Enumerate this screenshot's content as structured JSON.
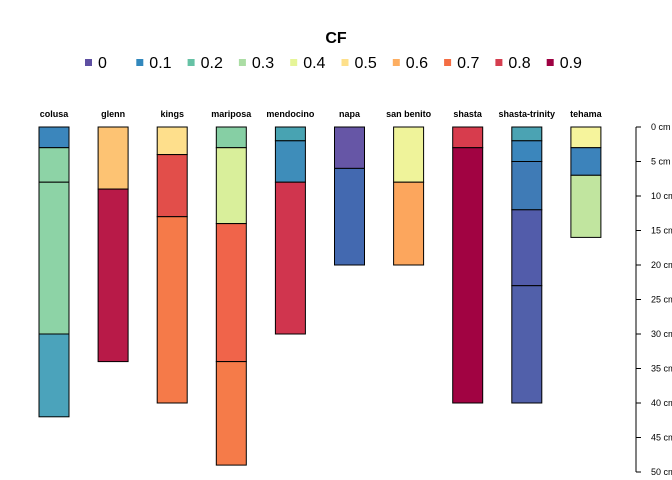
{
  "chart_data": {
    "type": "bar",
    "title": "CF",
    "legend": {
      "placement": "top",
      "entries": [
        {
          "label": "0",
          "color": "#5e4fa2"
        },
        {
          "label": "0.1",
          "color": "#3288bd"
        },
        {
          "label": "0.2",
          "color": "#66c2a5"
        },
        {
          "label": "0.3",
          "color": "#abdda4"
        },
        {
          "label": "0.4",
          "color": "#e6f598"
        },
        {
          "label": "0.5",
          "color": "#fee08b"
        },
        {
          "label": "0.6",
          "color": "#fdae61"
        },
        {
          "label": "0.7",
          "color": "#f46d43"
        },
        {
          "label": "0.8",
          "color": "#d53e4f"
        },
        {
          "label": "0.9",
          "color": "#9e0142"
        }
      ]
    },
    "depth_axis": {
      "range": [
        0,
        50
      ],
      "ticks": [
        0,
        5,
        10,
        15,
        20,
        25,
        30,
        35,
        40,
        45,
        50
      ],
      "tick_labels": [
        "0 cm",
        "5 cm",
        "10 cm",
        "15 cm",
        "20 cm",
        "25 cm",
        "30 cm",
        "35 cm",
        "40 cm",
        "45 cm",
        "50 cm"
      ]
    },
    "profiles": [
      {
        "name": "colusa",
        "horizons": [
          {
            "top": 0,
            "bottom": 3,
            "color": "#3b86bc"
          },
          {
            "top": 3,
            "bottom": 8,
            "color": "#8dd3a6"
          },
          {
            "top": 8,
            "bottom": 30,
            "color": "#8dd3a6"
          },
          {
            "top": 30,
            "bottom": 42,
            "color": "#4ba3bb"
          }
        ]
      },
      {
        "name": "glenn",
        "horizons": [
          {
            "top": 0,
            "bottom": 9,
            "color": "#fdc373"
          },
          {
            "top": 9,
            "bottom": 34,
            "color": "#b81a48"
          }
        ]
      },
      {
        "name": "kings",
        "horizons": [
          {
            "top": 0,
            "bottom": 4,
            "color": "#fedf8c"
          },
          {
            "top": 4,
            "bottom": 13,
            "color": "#e24e4a"
          },
          {
            "top": 13,
            "bottom": 40,
            "color": "#f57a49"
          }
        ]
      },
      {
        "name": "mariposa",
        "horizons": [
          {
            "top": 0,
            "bottom": 3,
            "color": "#86cfa4"
          },
          {
            "top": 3,
            "bottom": 14,
            "color": "#d9ef9b"
          },
          {
            "top": 14,
            "bottom": 34,
            "color": "#f0644a"
          },
          {
            "top": 34,
            "bottom": 49,
            "color": "#f57b49"
          }
        ]
      },
      {
        "name": "mendocino",
        "horizons": [
          {
            "top": 0,
            "bottom": 2,
            "color": "#48a3b2"
          },
          {
            "top": 2,
            "bottom": 8,
            "color": "#3e8dba"
          },
          {
            "top": 8,
            "bottom": 30,
            "color": "#d0354e"
          }
        ]
      },
      {
        "name": "napa",
        "horizons": [
          {
            "top": 0,
            "bottom": 6,
            "color": "#6656a6"
          },
          {
            "top": 6,
            "bottom": 20,
            "color": "#4369b0"
          }
        ]
      },
      {
        "name": "san benito",
        "horizons": [
          {
            "top": 0,
            "bottom": 8,
            "color": "#eff39a"
          },
          {
            "top": 8,
            "bottom": 20,
            "color": "#fca65d"
          }
        ]
      },
      {
        "name": "shasta",
        "horizons": [
          {
            "top": 0,
            "bottom": 3,
            "color": "#d73c4d"
          },
          {
            "top": 3,
            "bottom": 40,
            "color": "#a10342"
          }
        ]
      },
      {
        "name": "shasta-trinity",
        "horizons": [
          {
            "top": 0,
            "bottom": 2,
            "color": "#4ba3b3"
          },
          {
            "top": 2,
            "bottom": 5,
            "color": "#3b86bc"
          },
          {
            "top": 5,
            "bottom": 12,
            "color": "#3f7bb6"
          },
          {
            "top": 12,
            "bottom": 23,
            "color": "#525caa"
          },
          {
            "top": 23,
            "bottom": 40,
            "color": "#5160aa"
          }
        ]
      },
      {
        "name": "tehama",
        "horizons": [
          {
            "top": 0,
            "bottom": 3,
            "color": "#f6f49c"
          },
          {
            "top": 3,
            "bottom": 7,
            "color": "#3c83bb"
          },
          {
            "top": 7,
            "bottom": 16,
            "color": "#c1e59f"
          }
        ]
      }
    ]
  }
}
